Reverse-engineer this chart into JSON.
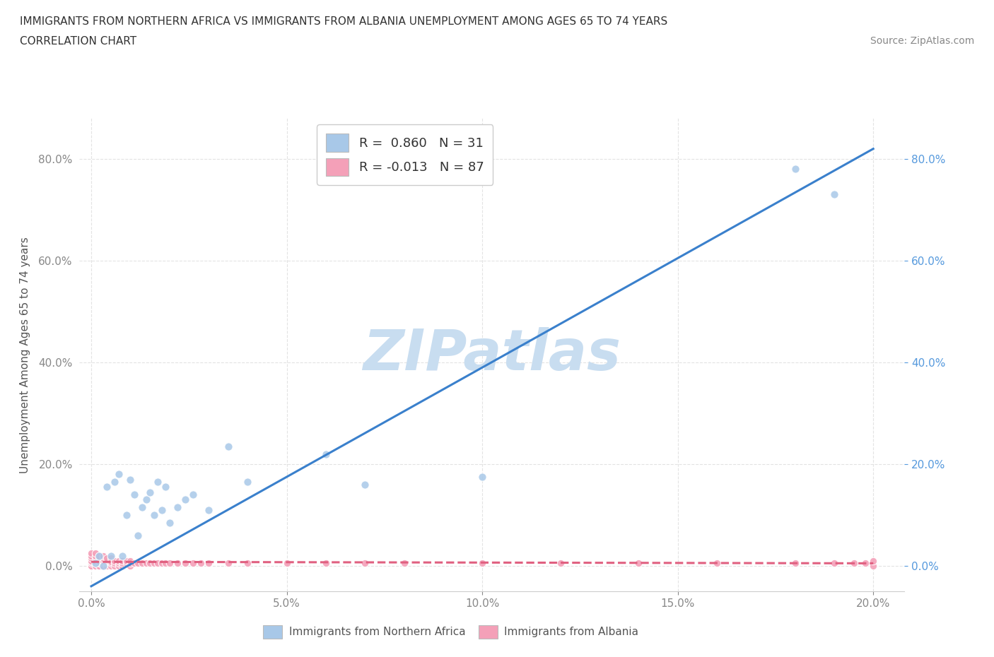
{
  "title_line1": "IMMIGRANTS FROM NORTHERN AFRICA VS IMMIGRANTS FROM ALBANIA UNEMPLOYMENT AMONG AGES 65 TO 74 YEARS",
  "title_line2": "CORRELATION CHART",
  "source_text": "Source: ZipAtlas.com",
  "ylabel": "Unemployment Among Ages 65 to 74 years",
  "r_northern_africa": 0.86,
  "n_northern_africa": 31,
  "r_albania": -0.013,
  "n_albania": 87,
  "color_northern_africa": "#a8c8e8",
  "color_albania": "#f4a0b8",
  "trendline_northern_africa_color": "#3a80cc",
  "trendline_albania_color": "#e06080",
  "watermark": "ZIPatlas",
  "watermark_color": "#c8ddf0",
  "background_color": "#ffffff",
  "grid_color": "#dddddd",
  "na_x": [
    0.001,
    0.002,
    0.003,
    0.004,
    0.005,
    0.006,
    0.007,
    0.008,
    0.009,
    0.01,
    0.011,
    0.012,
    0.013,
    0.014,
    0.015,
    0.016,
    0.017,
    0.018,
    0.019,
    0.02,
    0.022,
    0.024,
    0.026,
    0.03,
    0.035,
    0.04,
    0.06,
    0.07,
    0.1,
    0.18,
    0.19
  ],
  "na_y": [
    0.005,
    0.02,
    0.0,
    0.155,
    0.02,
    0.165,
    0.18,
    0.02,
    0.1,
    0.17,
    0.14,
    0.06,
    0.115,
    0.13,
    0.145,
    0.1,
    0.165,
    0.11,
    0.155,
    0.085,
    0.115,
    0.13,
    0.14,
    0.11,
    0.235,
    0.165,
    0.22,
    0.16,
    0.175,
    0.78,
    0.73
  ],
  "alb_x": [
    0.0,
    0.0,
    0.0,
    0.0,
    0.0,
    0.0,
    0.0,
    0.0,
    0.0,
    0.0,
    0.0,
    0.0,
    0.001,
    0.001,
    0.001,
    0.001,
    0.001,
    0.001,
    0.001,
    0.001,
    0.002,
    0.002,
    0.002,
    0.002,
    0.002,
    0.002,
    0.002,
    0.003,
    0.003,
    0.003,
    0.003,
    0.003,
    0.003,
    0.004,
    0.004,
    0.004,
    0.004,
    0.004,
    0.005,
    0.005,
    0.005,
    0.005,
    0.006,
    0.006,
    0.006,
    0.007,
    0.007,
    0.007,
    0.008,
    0.008,
    0.008,
    0.009,
    0.009,
    0.01,
    0.01,
    0.01,
    0.011,
    0.012,
    0.013,
    0.014,
    0.015,
    0.016,
    0.017,
    0.018,
    0.019,
    0.02,
    0.022,
    0.024,
    0.026,
    0.028,
    0.03,
    0.035,
    0.04,
    0.05,
    0.06,
    0.07,
    0.08,
    0.1,
    0.12,
    0.14,
    0.16,
    0.18,
    0.19,
    0.195,
    0.198,
    0.2,
    0.2
  ],
  "alb_y": [
    0.0,
    0.0,
    0.0,
    0.0,
    0.0,
    0.0,
    0.005,
    0.008,
    0.01,
    0.015,
    0.02,
    0.025,
    0.0,
    0.0,
    0.005,
    0.008,
    0.01,
    0.015,
    0.02,
    0.025,
    0.0,
    0.0,
    0.005,
    0.008,
    0.01,
    0.015,
    0.02,
    0.0,
    0.005,
    0.008,
    0.01,
    0.015,
    0.02,
    0.0,
    0.005,
    0.008,
    0.01,
    0.015,
    0.0,
    0.005,
    0.008,
    0.015,
    0.0,
    0.005,
    0.01,
    0.0,
    0.005,
    0.01,
    0.0,
    0.005,
    0.01,
    0.005,
    0.01,
    0.0,
    0.005,
    0.01,
    0.005,
    0.005,
    0.005,
    0.005,
    0.005,
    0.005,
    0.005,
    0.005,
    0.005,
    0.005,
    0.005,
    0.005,
    0.005,
    0.005,
    0.005,
    0.005,
    0.005,
    0.005,
    0.005,
    0.005,
    0.005,
    0.005,
    0.005,
    0.005,
    0.005,
    0.005,
    0.005,
    0.005,
    0.005,
    0.0,
    0.01
  ],
  "na_trend_x": [
    0.0,
    0.2
  ],
  "na_trend_y": [
    -0.04,
    0.82
  ],
  "alb_trend_x": [
    0.0,
    0.2
  ],
  "alb_trend_y": [
    0.008,
    0.005
  ],
  "xticks": [
    0.0,
    0.05,
    0.1,
    0.15,
    0.2
  ],
  "yticks": [
    0.0,
    0.2,
    0.4,
    0.6,
    0.8
  ],
  "xlim": [
    -0.003,
    0.208
  ],
  "ylim": [
    -0.05,
    0.88
  ]
}
